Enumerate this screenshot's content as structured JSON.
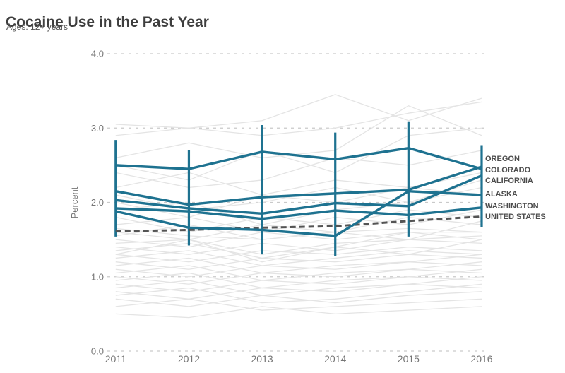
{
  "header": {
    "title": "Cocaine Use in the Past Year",
    "subtitle": "Ages: 12+ years"
  },
  "colors": {
    "highlight_teal": "#1e7290",
    "us_dashed_gray": "#545454",
    "background_line_gray": "#e4e4e4",
    "gridline_gray": "#c9c9c9",
    "axis_text_gray": "#757575",
    "title_text": "#3e3e3e",
    "legend_text": "#4d4d4d"
  },
  "chart_data": {
    "type": "line",
    "title": "Cocaine Use in the Past Year",
    "subtitle": "Ages: 12+ years",
    "xlabel": "",
    "ylabel": "Percent",
    "ylim": [
      0.0,
      4.0
    ],
    "y_ticks": [
      "0.0",
      "1.0",
      "2.0",
      "3.0",
      "4.0"
    ],
    "categories": [
      "2011",
      "2012",
      "2013",
      "2014",
      "2015",
      "2016"
    ],
    "grid": "dashed horizontal gridlines at each 1.0",
    "legend_position": "labels at right edge aligned to 2016 line endpoints",
    "series": [
      {
        "name": "OREGON",
        "style": "highlight",
        "values": [
          2.15,
          1.97,
          2.07,
          2.12,
          2.17,
          2.48
        ]
      },
      {
        "name": "COLORADO",
        "style": "highlight",
        "values": [
          2.5,
          2.45,
          2.68,
          2.58,
          2.73,
          2.45
        ]
      },
      {
        "name": "CALIFORNIA",
        "style": "highlight",
        "values": [
          2.03,
          1.92,
          1.85,
          1.99,
          1.95,
          2.36
        ]
      },
      {
        "name": "ALASKA",
        "style": "highlight",
        "values": [
          1.88,
          1.66,
          1.63,
          1.55,
          2.15,
          2.1
        ]
      },
      {
        "name": "WASHINGTON",
        "style": "highlight",
        "values": [
          1.92,
          1.88,
          1.78,
          1.89,
          1.83,
          1.93
        ]
      },
      {
        "name": "UNITED STATES",
        "style": "dashed",
        "values": [
          1.61,
          1.63,
          1.66,
          1.68,
          1.75,
          1.81
        ]
      }
    ],
    "error_bars": {
      "description": "teal vertical confidence-interval bars at each year",
      "low": [
        1.54,
        1.42,
        1.3,
        1.28,
        1.54,
        1.67
      ],
      "high": [
        2.84,
        2.7,
        3.04,
        2.94,
        3.09,
        2.77
      ]
    },
    "background_lines_note": "faint gray unlabeled lines for all other states",
    "background_lines": [
      [
        3.05,
        3.0,
        2.9,
        3.0,
        3.2,
        3.35
      ],
      [
        2.9,
        3.0,
        3.1,
        3.45,
        3.1,
        3.4
      ],
      [
        2.6,
        2.8,
        2.6,
        2.7,
        3.3,
        2.9
      ],
      [
        2.5,
        2.3,
        2.7,
        2.4,
        2.9,
        3.0
      ],
      [
        2.4,
        2.2,
        2.3,
        2.6,
        2.5,
        2.7
      ],
      [
        2.2,
        2.4,
        2.1,
        2.3,
        2.2,
        2.4
      ],
      [
        2.1,
        1.9,
        2.0,
        2.2,
        2.0,
        2.3
      ],
      [
        2.0,
        1.8,
        2.1,
        2.0,
        2.2,
        2.1
      ],
      [
        1.9,
        2.0,
        1.7,
        1.9,
        2.0,
        2.2
      ],
      [
        1.8,
        1.6,
        1.8,
        1.7,
        1.9,
        1.8
      ],
      [
        1.7,
        1.8,
        1.6,
        1.8,
        1.7,
        1.9
      ],
      [
        1.65,
        1.55,
        1.5,
        1.6,
        1.65,
        1.6
      ],
      [
        1.6,
        1.5,
        1.7,
        1.6,
        1.8,
        1.7
      ],
      [
        1.55,
        1.7,
        1.5,
        1.6,
        1.5,
        1.75
      ],
      [
        1.5,
        1.4,
        1.6,
        1.5,
        1.6,
        1.6
      ],
      [
        1.45,
        1.5,
        1.3,
        1.45,
        1.5,
        1.55
      ],
      [
        1.4,
        1.3,
        1.45,
        1.35,
        1.5,
        1.45
      ],
      [
        1.35,
        1.45,
        1.25,
        1.4,
        1.3,
        1.5
      ],
      [
        1.3,
        1.5,
        1.2,
        1.4,
        1.6,
        1.5
      ],
      [
        1.3,
        1.2,
        1.35,
        1.3,
        1.4,
        1.35
      ],
      [
        1.25,
        1.35,
        1.15,
        1.25,
        1.35,
        1.3
      ],
      [
        1.2,
        1.1,
        1.25,
        1.2,
        1.3,
        1.25
      ],
      [
        1.15,
        1.25,
        1.05,
        1.15,
        1.2,
        1.3
      ],
      [
        1.1,
        1.0,
        1.15,
        1.1,
        1.2,
        1.15
      ],
      [
        1.05,
        1.15,
        0.95,
        1.05,
        1.1,
        1.2
      ],
      [
        1.0,
        0.9,
        1.05,
        1.0,
        1.1,
        1.05
      ],
      [
        0.95,
        1.05,
        0.85,
        0.95,
        1.0,
        1.1
      ],
      [
        0.9,
        0.8,
        0.95,
        0.9,
        1.0,
        0.95
      ],
      [
        0.85,
        0.95,
        0.75,
        0.85,
        0.9,
        1.0
      ],
      [
        0.8,
        0.7,
        0.85,
        0.8,
        0.9,
        0.85
      ],
      [
        0.75,
        0.85,
        0.65,
        0.7,
        0.8,
        0.9
      ],
      [
        0.7,
        0.6,
        0.75,
        0.65,
        0.75,
        0.8
      ],
      [
        0.6,
        0.7,
        0.55,
        0.6,
        0.65,
        0.7
      ],
      [
        0.5,
        0.45,
        0.6,
        0.5,
        0.55,
        0.6
      ]
    ]
  }
}
